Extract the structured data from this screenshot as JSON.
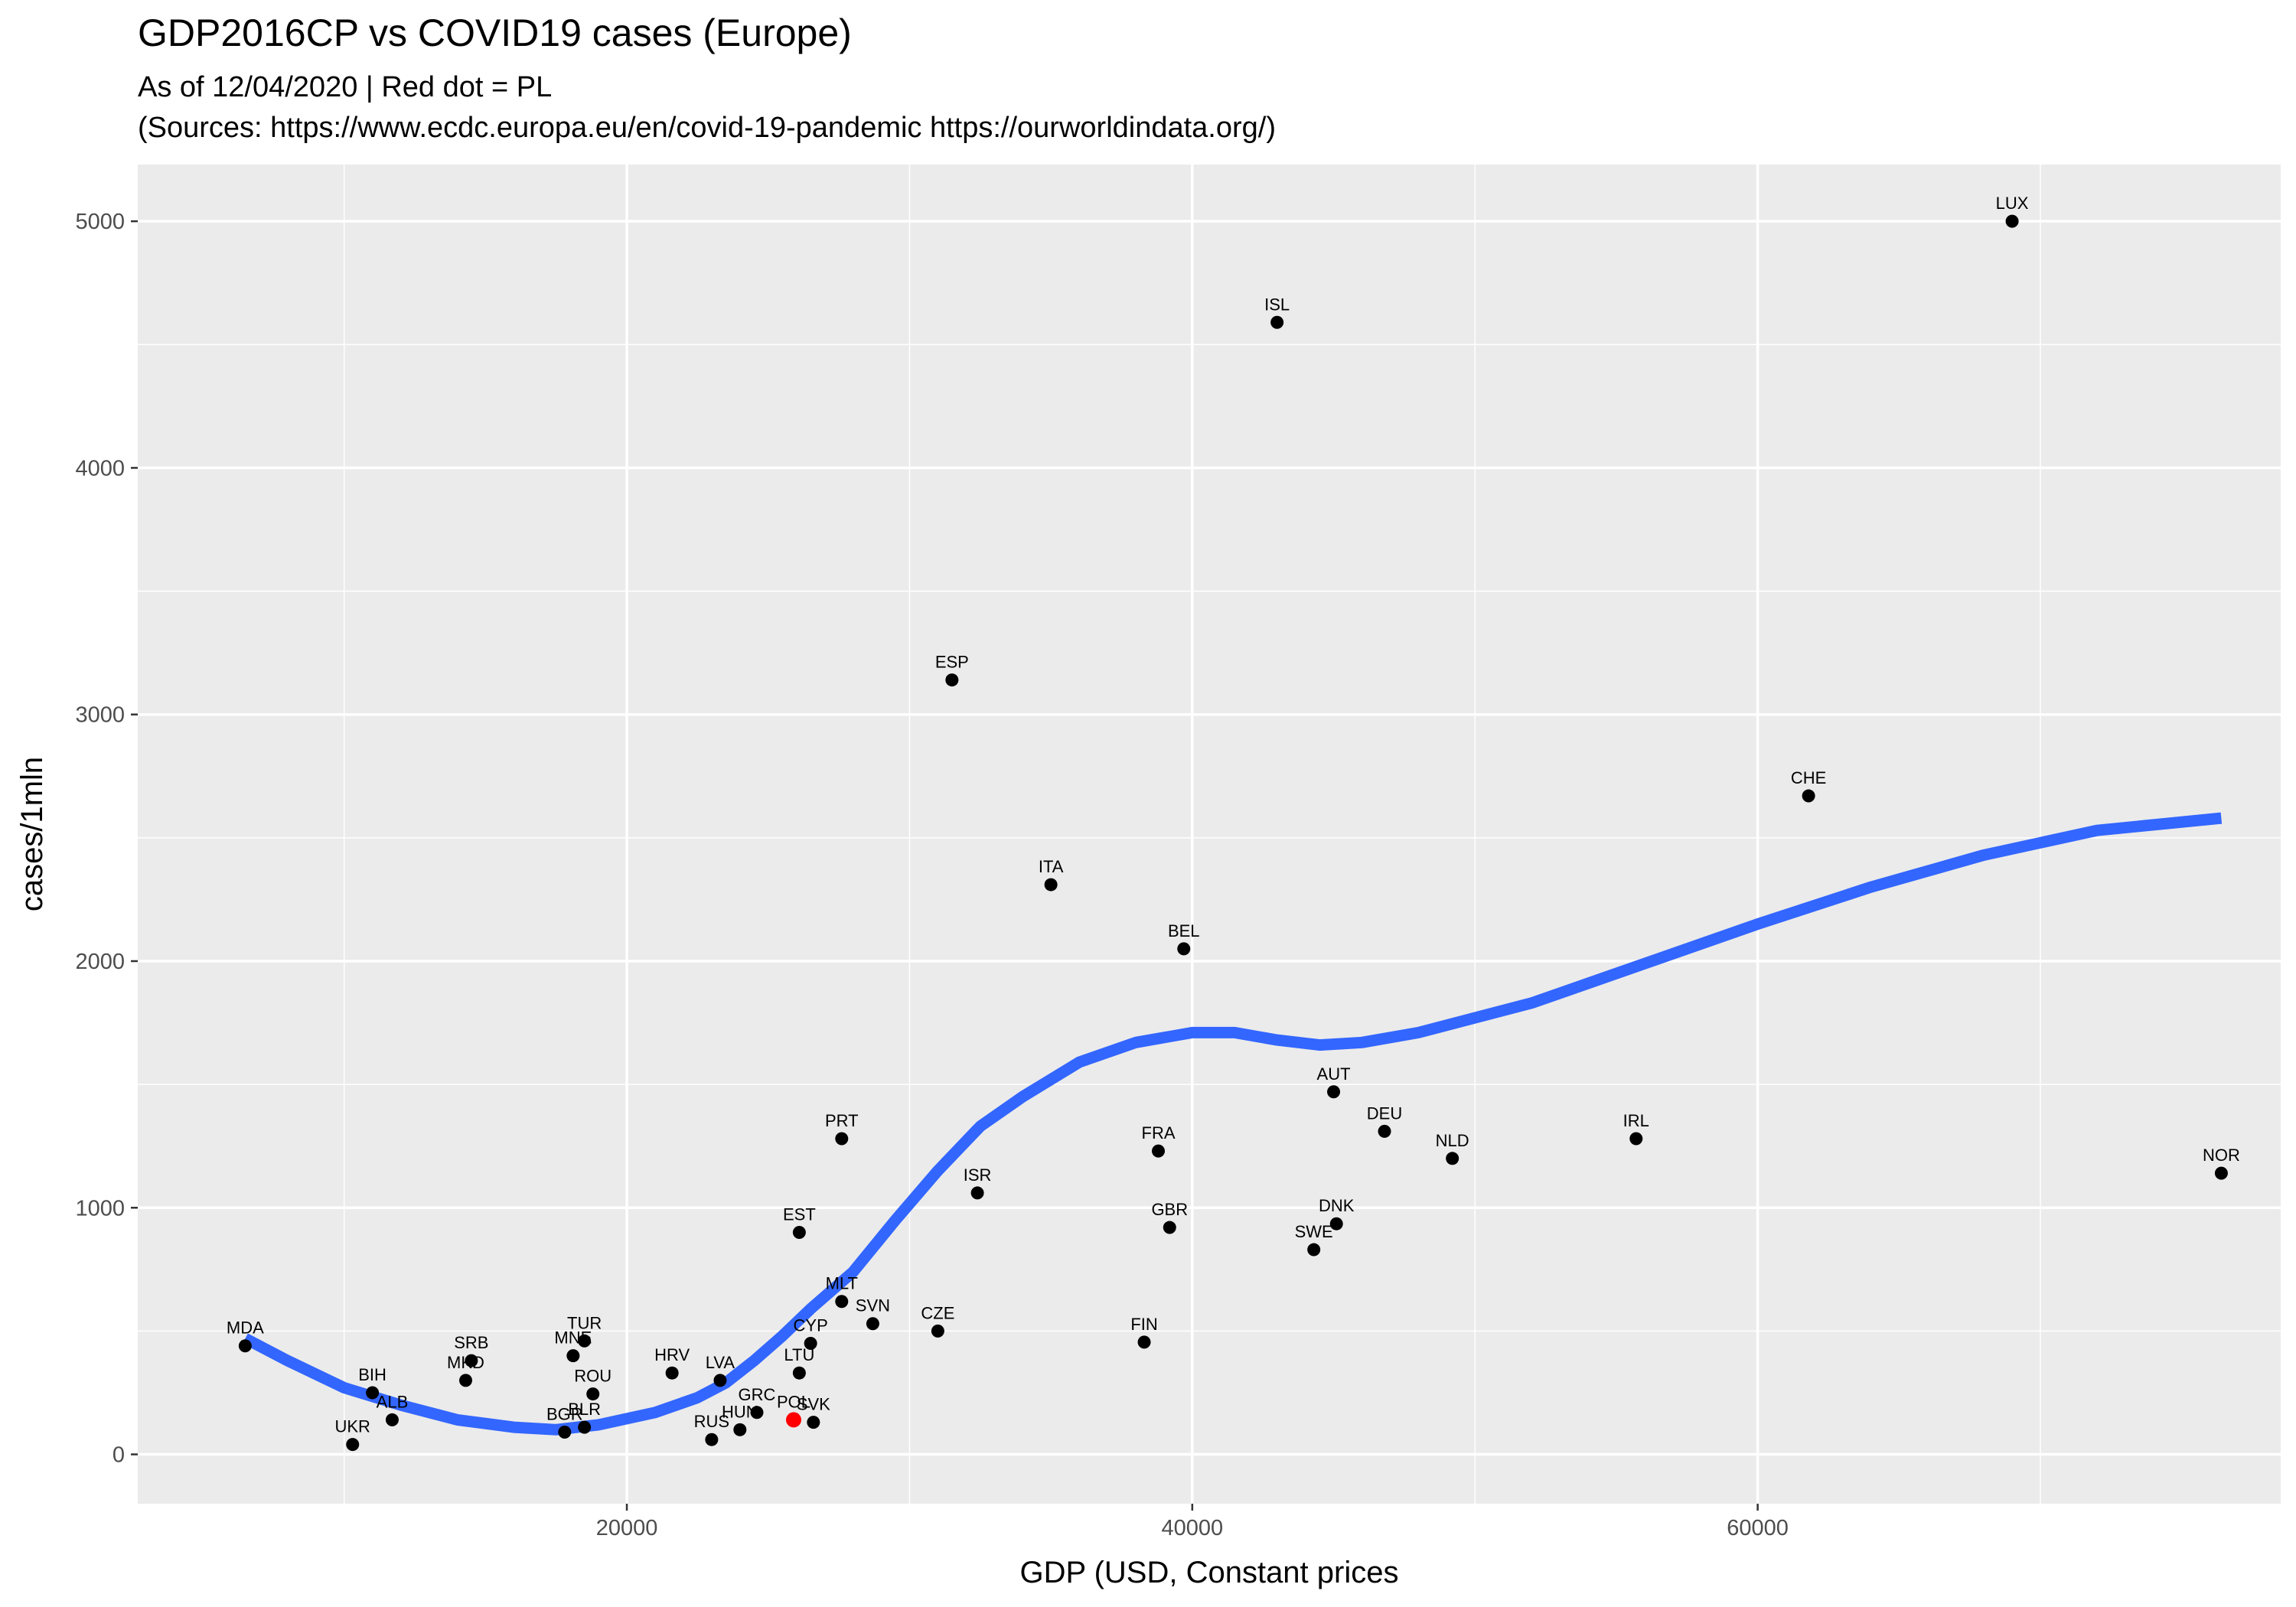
{
  "chart_data": {
    "type": "scatter",
    "title": "GDP2016CP vs COVID19 cases (Europe)",
    "subtitle_line1": "As of 12/04/2020 | Red dot = PL",
    "subtitle_line2": "(Sources: https://www.ecdc.europa.eu/en/covid-19-pandemic https://ourworldindata.org/)",
    "xlabel": "GDP (USD, Constant prices",
    "ylabel": "cases/1mln",
    "xlim": [
      2700,
      78500
    ],
    "ylim": [
      -200,
      5230
    ],
    "xticks": [
      20000,
      40000,
      60000
    ],
    "yticks": [
      0,
      1000,
      2000,
      3000,
      4000,
      5000
    ],
    "grid": true,
    "legend": "none",
    "colors": {
      "point": "#000000",
      "highlight": "#ff0000",
      "trend": "#3366ff",
      "panel": "#ebebeb",
      "grid": "#ffffff"
    },
    "points": [
      {
        "label": "MDA",
        "x": 6500,
        "y": 440
      },
      {
        "label": "UKR",
        "x": 10300,
        "y": 40
      },
      {
        "label": "BIH",
        "x": 11000,
        "y": 250
      },
      {
        "label": "ALB",
        "x": 11700,
        "y": 140
      },
      {
        "label": "SRB",
        "x": 14500,
        "y": 380
      },
      {
        "label": "MKD",
        "x": 14300,
        "y": 300
      },
      {
        "label": "MNE",
        "x": 18100,
        "y": 400
      },
      {
        "label": "TUR",
        "x": 18500,
        "y": 460
      },
      {
        "label": "ROU",
        "x": 18800,
        "y": 245
      },
      {
        "label": "BGR",
        "x": 17800,
        "y": 90
      },
      {
        "label": "BLR",
        "x": 18500,
        "y": 110
      },
      {
        "label": "HRV",
        "x": 21600,
        "y": 330
      },
      {
        "label": "LVA",
        "x": 23300,
        "y": 300
      },
      {
        "label": "RUS",
        "x": 23000,
        "y": 60
      },
      {
        "label": "HUN",
        "x": 24000,
        "y": 100
      },
      {
        "label": "GRC",
        "x": 24600,
        "y": 170
      },
      {
        "label": "POL",
        "x": 25900,
        "y": 140,
        "highlight": true
      },
      {
        "label": "SVK",
        "x": 26600,
        "y": 130
      },
      {
        "label": "LTU",
        "x": 26100,
        "y": 330
      },
      {
        "label": "CYP",
        "x": 26500,
        "y": 450
      },
      {
        "label": "MLT",
        "x": 27600,
        "y": 620
      },
      {
        "label": "EST",
        "x": 26100,
        "y": 900
      },
      {
        "label": "PRT",
        "x": 27600,
        "y": 1280
      },
      {
        "label": "SVN",
        "x": 28700,
        "y": 530
      },
      {
        "label": "CZE",
        "x": 31000,
        "y": 500
      },
      {
        "label": "ESP",
        "x": 31500,
        "y": 3140
      },
      {
        "label": "ISR",
        "x": 32400,
        "y": 1060
      },
      {
        "label": "ITA",
        "x": 35000,
        "y": 2310
      },
      {
        "label": "FIN",
        "x": 38300,
        "y": 455
      },
      {
        "label": "FRA",
        "x": 38800,
        "y": 1230
      },
      {
        "label": "GBR",
        "x": 39200,
        "y": 920
      },
      {
        "label": "BEL",
        "x": 39700,
        "y": 2050
      },
      {
        "label": "ISL",
        "x": 43000,
        "y": 4590
      },
      {
        "label": "SWE",
        "x": 44300,
        "y": 830
      },
      {
        "label": "AUT",
        "x": 45000,
        "y": 1470
      },
      {
        "label": "DNK",
        "x": 45100,
        "y": 935
      },
      {
        "label": "DEU",
        "x": 46800,
        "y": 1310
      },
      {
        "label": "NLD",
        "x": 49200,
        "y": 1200
      },
      {
        "label": "IRL",
        "x": 55700,
        "y": 1280
      },
      {
        "label": "CHE",
        "x": 61800,
        "y": 2670
      },
      {
        "label": "LUX",
        "x": 69000,
        "y": 5000
      },
      {
        "label": "NOR",
        "x": 76400,
        "y": 1140
      }
    ],
    "trend_line": {
      "x": [
        6500,
        8000,
        10000,
        12000,
        14000,
        16000,
        17500,
        19000,
        21000,
        22500,
        23500,
        24500,
        25500,
        26500,
        28000,
        29500,
        31000,
        32500,
        34000,
        36000,
        38000,
        40000,
        41500,
        43000,
        44500,
        46000,
        48000,
        52000,
        56000,
        60000,
        64000,
        68000,
        72000,
        76400
      ],
      "y": [
        470,
        380,
        270,
        200,
        140,
        110,
        100,
        120,
        170,
        230,
        290,
        380,
        480,
        590,
        740,
        950,
        1150,
        1330,
        1450,
        1590,
        1670,
        1710,
        1710,
        1680,
        1660,
        1670,
        1710,
        1830,
        1990,
        2150,
        2300,
        2430,
        2530,
        2580
      ]
    }
  }
}
